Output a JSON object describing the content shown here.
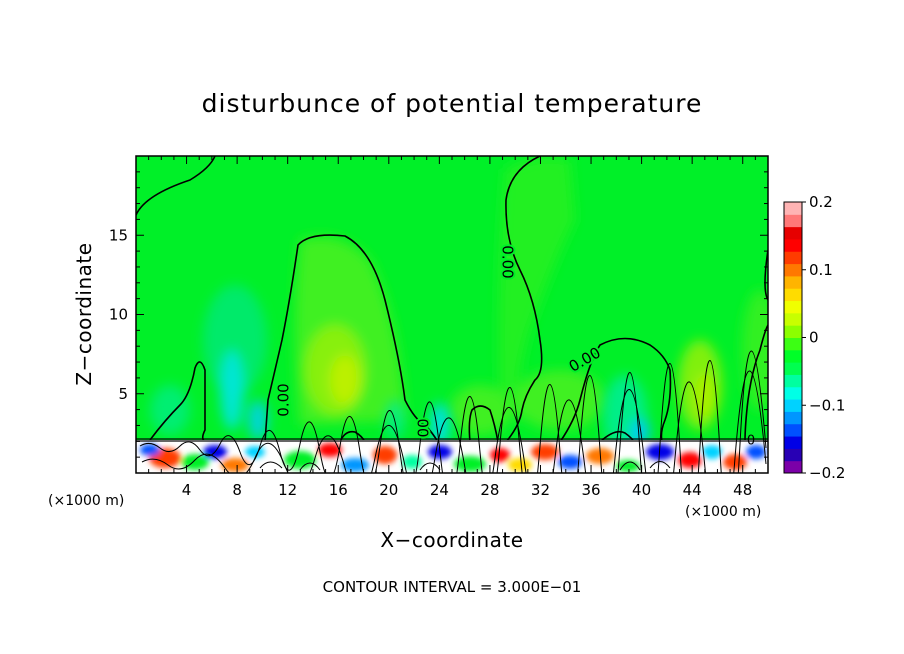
{
  "chart_data": {
    "type": "heatmap",
    "title": "disturbunce of potential temperature",
    "xlabel": "X−coordinate",
    "ylabel": "Z−coordinate",
    "x_unit": "(×1000 m)",
    "x_unit_right": "(×1000 m)",
    "xlim": [
      0,
      50
    ],
    "ylim": [
      0,
      20
    ],
    "x_ticks": [
      4,
      8,
      12,
      16,
      20,
      24,
      28,
      32,
      36,
      40,
      44,
      48
    ],
    "y_ticks": [
      5,
      10,
      15
    ],
    "colorbar": {
      "range": [
        -0.2,
        0.2
      ],
      "labels": [
        "0.2",
        "0.1",
        "0",
        "−0.1",
        "−0.2"
      ],
      "label_values": [
        0.2,
        0.1,
        0,
        -0.1,
        -0.2
      ],
      "colors": [
        "#7b00a8",
        "#2800b4",
        "#0000e6",
        "#0050ff",
        "#0096ff",
        "#00d2ff",
        "#00ffe6",
        "#00ffa0",
        "#00ff50",
        "#00ff28",
        "#3cff14",
        "#8cff00",
        "#c8ff00",
        "#f0ff00",
        "#ffdc00",
        "#ffb400",
        "#ff7800",
        "#ff3c00",
        "#ff0000",
        "#e60000",
        "#ff7878",
        "#ffb4b4"
      ]
    },
    "contour_labels": [
      {
        "text": "0.00",
        "x": 29.6,
        "z": 13.3,
        "rotate": 90
      },
      {
        "text": "0.00",
        "x": 35.5,
        "z": 7.0,
        "rotate": -30
      },
      {
        "text": "0.00",
        "x": 11.8,
        "z": 4.8,
        "rotate": -90
      },
      {
        "text": "00",
        "x": 22.5,
        "z": 3.0,
        "rotate": -90
      },
      {
        "text": "0",
        "x": 48.2,
        "z": 2.0,
        "rotate": 0
      }
    ],
    "footnote": "CONTOUR INTERVAL = 3.000E−01"
  }
}
